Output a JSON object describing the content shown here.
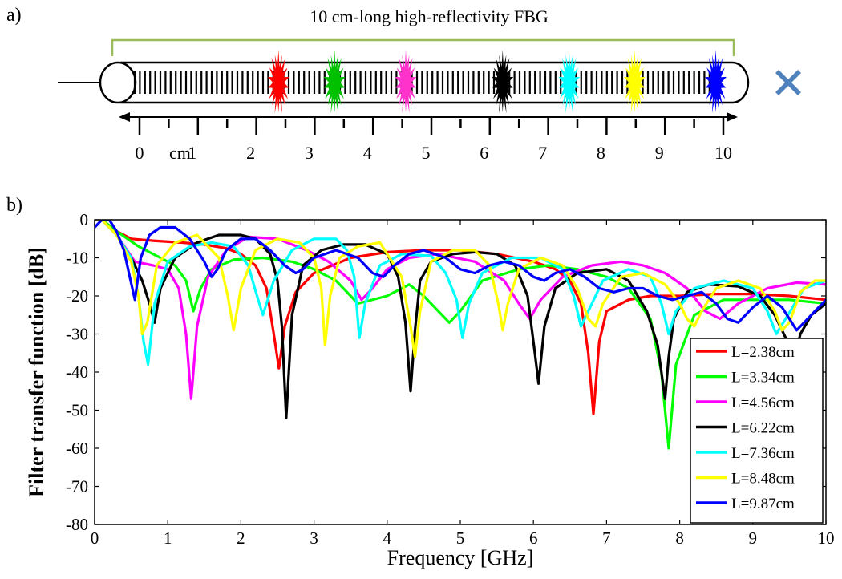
{
  "panel_a": {
    "label": "a)",
    "title": "10 cm-long high-reflectivity FBG",
    "ruler_labels": [
      "0",
      "cm",
      "1",
      "2",
      "3",
      "4",
      "5",
      "6",
      "7",
      "8",
      "9",
      "10"
    ],
    "ruler_label_positions_cm": [
      0,
      0.5,
      1,
      2,
      3,
      4,
      5,
      6,
      7,
      8,
      9,
      10
    ],
    "perturbations": [
      {
        "position_cm": 2.38,
        "color": "#ff0000"
      },
      {
        "position_cm": 3.34,
        "color": "#00c000"
      },
      {
        "position_cm": 4.56,
        "color": "#ff33cc"
      },
      {
        "position_cm": 6.22,
        "color": "#000000"
      },
      {
        "position_cm": 7.36,
        "color": "#00ffff"
      },
      {
        "position_cm": 8.48,
        "color": "#ffff00"
      },
      {
        "position_cm": 9.87,
        "color": "#0000ff"
      }
    ],
    "end_marker_color": "#4f81bd",
    "bracket_color": "#9bbb59"
  },
  "panel_b": {
    "label": "b)"
  },
  "chart_data": {
    "type": "line",
    "xlabel": "Frequency [GHz]",
    "ylabel": "Filter transfer function [dB]",
    "xlim": [
      0,
      10
    ],
    "ylim": [
      -80,
      0
    ],
    "xticks": [
      0,
      1,
      2,
      3,
      4,
      5,
      6,
      7,
      8,
      9,
      10
    ],
    "yticks": [
      0,
      -10,
      -20,
      -30,
      -40,
      -50,
      -60,
      -70,
      -80
    ],
    "grid": false,
    "legend_position": "bottom-right",
    "series": [
      {
        "name": "L=2.38cm",
        "color": "#ff0000",
        "x": [
          0,
          0.1,
          0.3,
          0.5,
          0.8,
          1.2,
          1.5,
          1.8,
          2.0,
          2.2,
          2.35,
          2.45,
          2.52,
          2.6,
          2.75,
          3.0,
          3.5,
          4.0,
          4.5,
          5.0,
          5.5,
          6.0,
          6.3,
          6.5,
          6.65,
          6.75,
          6.82,
          6.9,
          7.0,
          7.3,
          7.6,
          8.0,
          8.5,
          9.0,
          9.5,
          10.0
        ],
        "y": [
          0,
          0,
          -3,
          -5,
          -5.5,
          -6,
          -6.5,
          -7.5,
          -9,
          -12,
          -18,
          -30,
          -39,
          -28,
          -19,
          -14,
          -10,
          -8.5,
          -8,
          -8,
          -9,
          -11,
          -13,
          -16,
          -22,
          -35,
          -51,
          -32,
          -24,
          -21,
          -20,
          -20,
          -19.5,
          -19.5,
          -20,
          -21
        ]
      },
      {
        "name": "L=3.34cm",
        "color": "#00ff00",
        "x": [
          0,
          0.1,
          0.3,
          0.6,
          0.9,
          1.1,
          1.25,
          1.35,
          1.45,
          1.6,
          1.9,
          2.3,
          2.7,
          3.0,
          3.3,
          3.6,
          4.0,
          4.3,
          4.5,
          4.7,
          4.85,
          5.0,
          5.3,
          5.8,
          6.2,
          6.6,
          7.0,
          7.3,
          7.6,
          7.75,
          7.85,
          7.95,
          8.2,
          8.6,
          9.0,
          9.5,
          10.0
        ],
        "y": [
          0,
          0,
          -3,
          -7,
          -10,
          -12,
          -16,
          -24,
          -18,
          -13,
          -10.5,
          -10,
          -11,
          -13,
          -16,
          -22,
          -20,
          -17,
          -20,
          -24,
          -27,
          -24,
          -16,
          -13,
          -12,
          -13,
          -15,
          -18,
          -26,
          -40,
          -60,
          -38,
          -25,
          -21,
          -21,
          -21,
          -22
        ]
      },
      {
        "name": "L=4.56cm",
        "color": "#ff00ff",
        "x": [
          0,
          0.1,
          0.3,
          0.55,
          0.8,
          1.0,
          1.15,
          1.25,
          1.32,
          1.4,
          1.55,
          1.8,
          2.1,
          2.5,
          2.9,
          3.2,
          3.5,
          3.65,
          3.8,
          4.0,
          4.3,
          4.7,
          5.2,
          5.6,
          5.8,
          5.95,
          6.1,
          6.4,
          6.8,
          7.2,
          7.5,
          7.8,
          8.1,
          8.35,
          8.55,
          8.8,
          9.2,
          9.6,
          10.0
        ],
        "y": [
          0,
          0,
          -4,
          -11,
          -12,
          -13,
          -18,
          -30,
          -47,
          -28,
          -15,
          -8,
          -4.5,
          -5,
          -8,
          -11,
          -16,
          -21,
          -18,
          -13,
          -10,
          -9,
          -11,
          -16,
          -22,
          -26,
          -21,
          -15,
          -12,
          -11,
          -12,
          -14,
          -18,
          -24,
          -26,
          -22,
          -18,
          -16.5,
          -17
        ]
      },
      {
        "name": "L=6.22cm",
        "color": "#000000",
        "x": [
          0,
          0.1,
          0.3,
          0.5,
          0.65,
          0.75,
          0.82,
          0.9,
          1.1,
          1.4,
          1.7,
          2.0,
          2.2,
          2.4,
          2.5,
          2.56,
          2.62,
          2.7,
          2.85,
          3.1,
          3.4,
          3.7,
          4.0,
          4.15,
          4.25,
          4.32,
          4.38,
          4.45,
          4.6,
          4.9,
          5.2,
          5.5,
          5.75,
          5.92,
          6.02,
          6.07,
          6.15,
          6.3,
          6.6,
          7.0,
          7.3,
          7.55,
          7.7,
          7.8,
          7.85,
          7.92,
          8.1,
          8.4,
          8.8,
          9.1,
          9.3,
          9.45,
          9.55,
          9.65,
          9.8,
          10.0
        ],
        "y": [
          0,
          0,
          -4,
          -10,
          -16,
          -22,
          -27,
          -18,
          -10,
          -6,
          -4,
          -4,
          -5,
          -9,
          -16,
          -28,
          -52,
          -25,
          -12,
          -8,
          -6.5,
          -6.5,
          -9,
          -15,
          -27,
          -45,
          -29,
          -16,
          -11,
          -9,
          -8.5,
          -9,
          -12,
          -20,
          -35,
          -43,
          -28,
          -18,
          -14,
          -13,
          -16,
          -24,
          -33,
          -47,
          -36,
          -26,
          -19,
          -17,
          -17.5,
          -20,
          -25,
          -31,
          -38,
          -30,
          -25,
          -22
        ]
      },
      {
        "name": "L=7.36cm",
        "color": "#00ffff",
        "x": [
          0,
          0.1,
          0.3,
          0.5,
          0.6,
          0.67,
          0.73,
          0.82,
          1.0,
          1.3,
          1.6,
          1.9,
          2.1,
          2.22,
          2.3,
          2.45,
          2.7,
          3.0,
          3.3,
          3.45,
          3.55,
          3.62,
          3.7,
          3.9,
          4.2,
          4.6,
          4.8,
          4.95,
          5.03,
          5.12,
          5.3,
          5.7,
          6.1,
          6.4,
          6.55,
          6.65,
          6.75,
          6.95,
          7.3,
          7.6,
          7.75,
          7.85,
          7.95,
          8.2,
          8.6,
          9.0,
          9.2,
          9.32,
          9.45,
          9.7,
          10.0
        ],
        "y": [
          0,
          0,
          -4,
          -10,
          -20,
          -32,
          -38,
          -22,
          -11,
          -7,
          -6,
          -7,
          -12,
          -20,
          -25,
          -16,
          -8,
          -5,
          -5,
          -8,
          -15,
          -31,
          -22,
          -12,
          -9,
          -9.5,
          -14,
          -21,
          -31,
          -22,
          -14,
          -10,
          -10,
          -13,
          -20,
          -28,
          -24,
          -16,
          -13,
          -15,
          -22,
          -30,
          -24,
          -18,
          -16,
          -18,
          -24,
          -30,
          -26,
          -18,
          -16
        ]
      },
      {
        "name": "L=8.48cm",
        "color": "#ffff00",
        "x": [
          0,
          0.1,
          0.3,
          0.5,
          0.6,
          0.65,
          0.72,
          0.85,
          1.1,
          1.4,
          1.7,
          1.82,
          1.9,
          2.0,
          2.2,
          2.5,
          2.8,
          3.0,
          3.1,
          3.15,
          3.22,
          3.35,
          3.6,
          3.9,
          4.2,
          4.32,
          4.38,
          4.45,
          4.6,
          4.9,
          5.2,
          5.4,
          5.52,
          5.58,
          5.65,
          5.8,
          6.1,
          6.4,
          6.6,
          6.75,
          6.85,
          6.95,
          7.2,
          7.5,
          7.8,
          8.0,
          8.1,
          8.2,
          8.3,
          8.5,
          8.8,
          9.1,
          9.3,
          9.4,
          9.5,
          9.65,
          9.85,
          10.0
        ],
        "y": [
          0,
          0,
          -4,
          -11,
          -20,
          -30,
          -27,
          -12,
          -6,
          -4,
          -10,
          -20,
          -29,
          -18,
          -8,
          -5,
          -6,
          -10,
          -18,
          -33,
          -20,
          -10,
          -7,
          -6,
          -15,
          -28,
          -36,
          -24,
          -11,
          -8,
          -8,
          -12,
          -22,
          -29,
          -22,
          -13,
          -10,
          -12,
          -18,
          -26,
          -28,
          -22,
          -15,
          -14,
          -17,
          -22,
          -26,
          -28,
          -24,
          -18,
          -16,
          -18,
          -24,
          -29,
          -27,
          -19,
          -16,
          -16
        ]
      },
      {
        "name": "L=9.87cm",
        "color": "#0000ff",
        "x": [
          0,
          0.1,
          0.2,
          0.3,
          0.4,
          0.48,
          0.55,
          0.63,
          0.75,
          0.9,
          1.1,
          1.3,
          1.5,
          1.6,
          1.68,
          1.8,
          2.0,
          2.2,
          2.4,
          2.6,
          2.75,
          2.85,
          3.0,
          3.3,
          3.6,
          3.8,
          3.95,
          4.1,
          4.3,
          4.5,
          4.8,
          5.0,
          5.2,
          5.4,
          5.6,
          5.8,
          6.0,
          6.15,
          6.3,
          6.5,
          6.7,
          6.9,
          7.1,
          7.3,
          7.5,
          7.7,
          7.9,
          8.1,
          8.3,
          8.5,
          8.65,
          8.8,
          9.0,
          9.2,
          9.4,
          9.5,
          9.6,
          9.7,
          9.85,
          10.0
        ],
        "y": [
          -2,
          0,
          0,
          -3,
          -8,
          -15,
          -21,
          -10,
          -4,
          -2,
          -2,
          -5,
          -11,
          -15,
          -13,
          -8,
          -5,
          -5,
          -8,
          -12,
          -14,
          -13,
          -10,
          -8,
          -10,
          -14,
          -15,
          -12,
          -9,
          -8,
          -10,
          -13,
          -14,
          -12,
          -11,
          -12,
          -15,
          -16,
          -14,
          -13,
          -15,
          -18,
          -19,
          -18,
          -18,
          -20,
          -21,
          -20,
          -19,
          -22,
          -26,
          -27,
          -23,
          -20,
          -23,
          -26,
          -29,
          -27,
          -24,
          -21
        ]
      }
    ]
  }
}
